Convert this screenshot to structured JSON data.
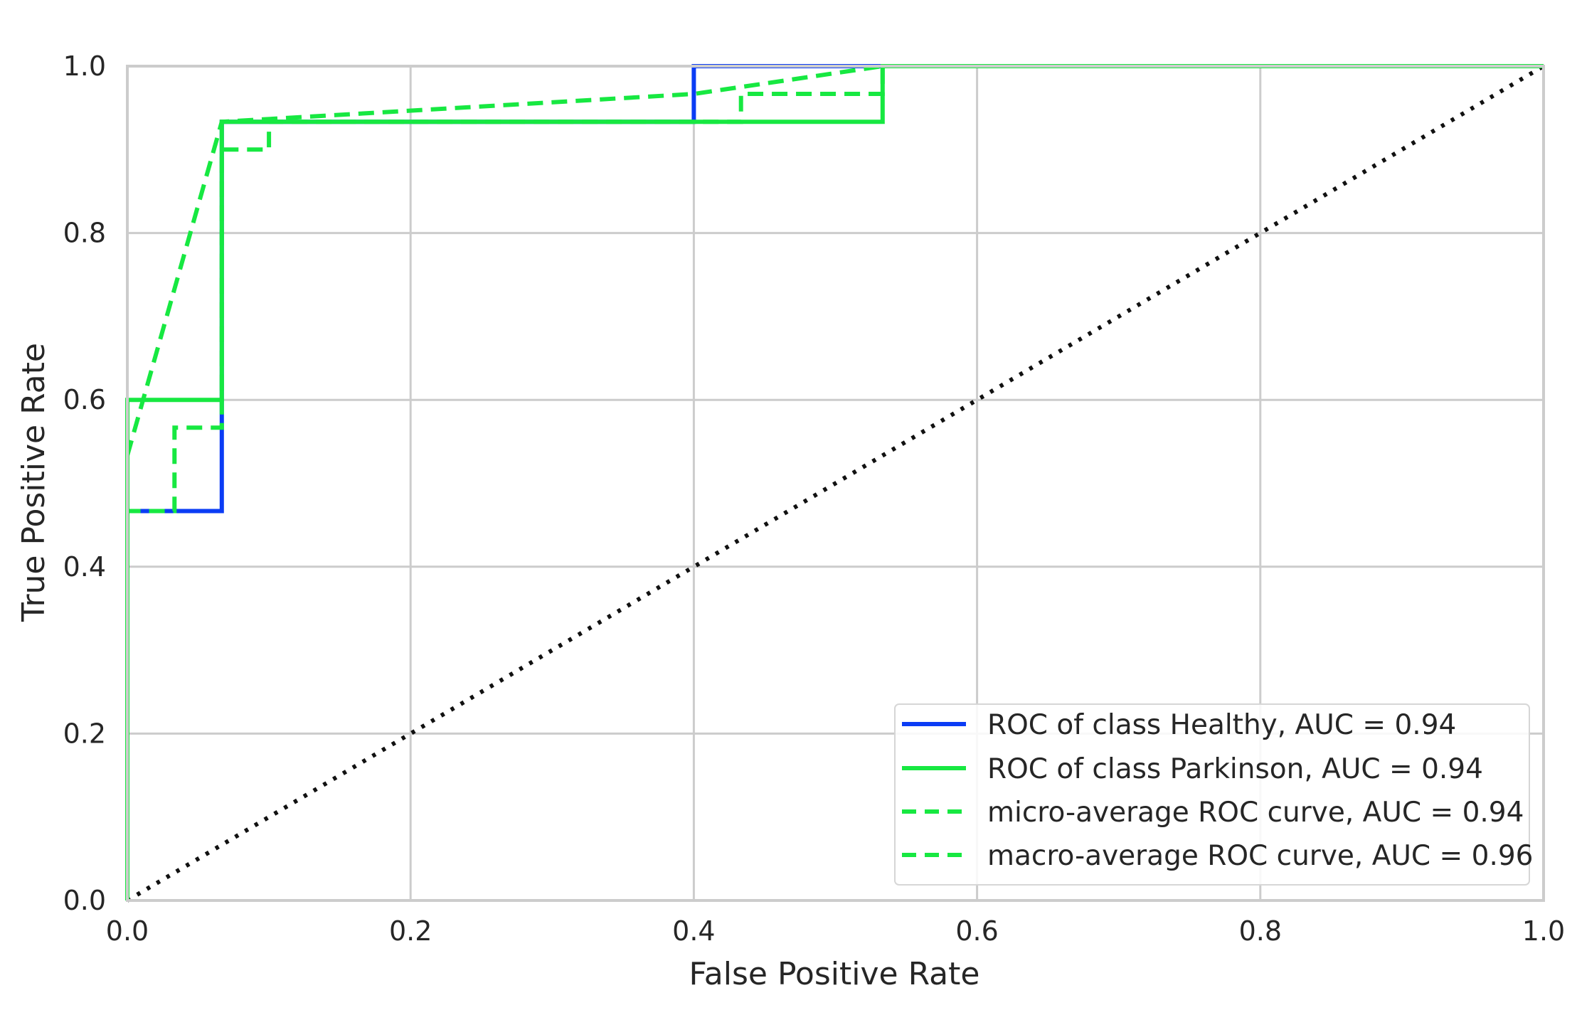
{
  "chart_data": {
    "type": "line",
    "xlabel": "False Positive Rate",
    "ylabel": "True Positive Rate",
    "xlim": [
      0.0,
      1.0
    ],
    "ylim": [
      0.0,
      1.0
    ],
    "xticks": [
      "0.0",
      "0.2",
      "0.4",
      "0.6",
      "0.8",
      "1.0"
    ],
    "yticks": [
      "0.0",
      "0.2",
      "0.4",
      "0.6",
      "0.8",
      "1.0"
    ],
    "grid": true,
    "legend_position": "lower-right",
    "series": [
      {
        "name": "ROC of class Healthy, AUC = 0.94",
        "color": "#0b3cf5",
        "style": "solid",
        "x": [
          0.0,
          0.0,
          0.0667,
          0.0667,
          0.4,
          0.4,
          1.0
        ],
        "y": [
          0.0,
          0.4667,
          0.4667,
          0.9333,
          0.9333,
          1.0,
          1.0
        ]
      },
      {
        "name": "ROC of class Parkinson, AUC = 0.94",
        "color": "#17e841",
        "style": "solid",
        "x": [
          0.0,
          0.0,
          0.0667,
          0.0667,
          0.5333,
          0.5333,
          1.0
        ],
        "y": [
          0.0,
          0.6,
          0.6,
          0.9333,
          0.9333,
          1.0,
          1.0
        ]
      },
      {
        "name": "micro-average ROC curve, AUC = 0.94",
        "color": "#17e841",
        "style": "dashed",
        "x": [
          0.0,
          0.0,
          0.0333,
          0.0333,
          0.0667,
          0.0667,
          0.1,
          0.1,
          0.4333,
          0.4333,
          0.5333,
          0.5333,
          1.0
        ],
        "y": [
          0.0,
          0.4667,
          0.4667,
          0.5667,
          0.5667,
          0.9,
          0.9,
          0.9333,
          0.9333,
          0.9667,
          0.9667,
          1.0,
          1.0
        ]
      },
      {
        "name": "macro-average ROC curve, AUC = 0.96",
        "color": "#17e841",
        "style": "dashed",
        "x": [
          0.0,
          0.0667,
          0.4,
          0.5333,
          1.0
        ],
        "y": [
          0.5333,
          0.9333,
          0.9667,
          1.0,
          1.0
        ]
      }
    ],
    "reference_line": {
      "color": "#111111",
      "style": "dotted",
      "x": [
        0.0,
        1.0
      ],
      "y": [
        0.0,
        1.0
      ]
    }
  }
}
